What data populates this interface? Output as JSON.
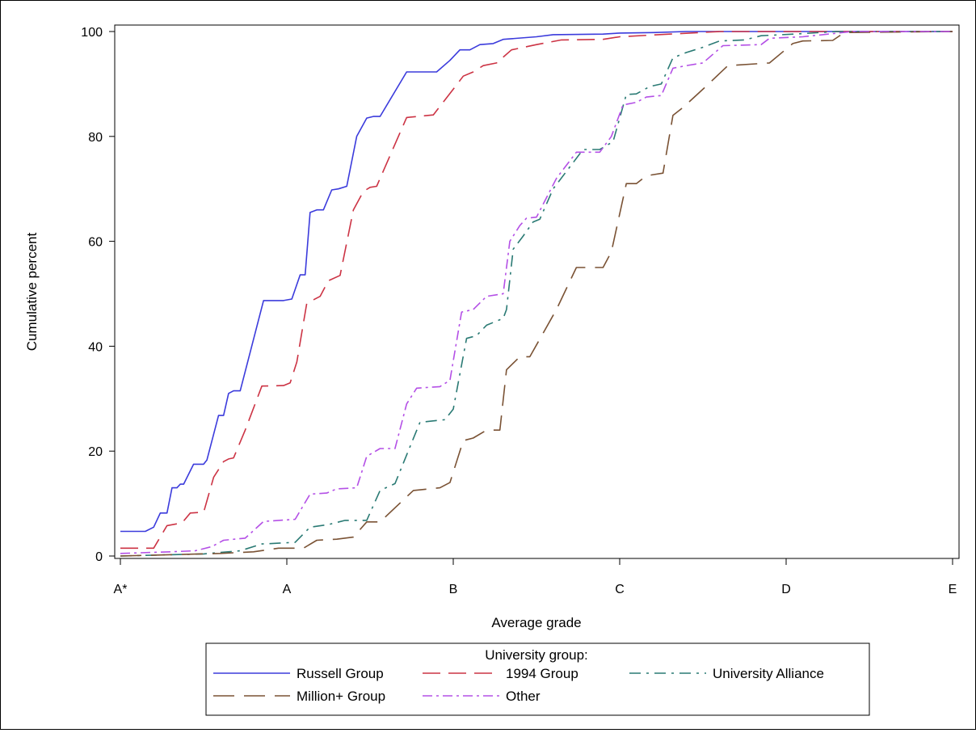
{
  "chart_data": {
    "type": "line",
    "xlabel": "Average grade",
    "ylabel": "Cumulative percent",
    "x_tick_labels": [
      "A*",
      "A",
      "B",
      "C",
      "D",
      "E"
    ],
    "y_ticks": [
      0,
      20,
      40,
      60,
      80,
      100
    ],
    "xlim": [
      0,
      5
    ],
    "ylim": [
      0,
      100
    ],
    "grid": false,
    "legend": {
      "title": "University group:",
      "placement": "bottom"
    },
    "series": [
      {
        "name": "Russell Group",
        "color": "#3b3bdc",
        "dash": "solid",
        "points": [
          [
            0,
            4.7
          ],
          [
            0.15,
            4.7
          ],
          [
            0.2,
            5.5
          ],
          [
            0.24,
            8.2
          ],
          [
            0.28,
            8.2
          ],
          [
            0.31,
            13
          ],
          [
            0.34,
            13
          ],
          [
            0.36,
            13.7
          ],
          [
            0.38,
            13.7
          ],
          [
            0.44,
            17.5
          ],
          [
            0.5,
            17.5
          ],
          [
            0.52,
            18.3
          ],
          [
            0.59,
            26.8
          ],
          [
            0.62,
            26.8
          ],
          [
            0.65,
            31
          ],
          [
            0.68,
            31.5
          ],
          [
            0.72,
            31.5
          ],
          [
            0.86,
            48.7
          ],
          [
            0.98,
            48.7
          ],
          [
            1.03,
            49
          ],
          [
            1.08,
            53.6
          ],
          [
            1.11,
            53.6
          ],
          [
            1.14,
            65.5
          ],
          [
            1.18,
            66
          ],
          [
            1.22,
            66
          ],
          [
            1.27,
            69.8
          ],
          [
            1.31,
            70
          ],
          [
            1.36,
            70.5
          ],
          [
            1.42,
            80
          ],
          [
            1.48,
            83.5
          ],
          [
            1.52,
            83.8
          ],
          [
            1.56,
            83.8
          ],
          [
            1.72,
            92.3
          ],
          [
            1.9,
            92.3
          ],
          [
            1.98,
            94.5
          ],
          [
            2.04,
            96.5
          ],
          [
            2.1,
            96.5
          ],
          [
            2.16,
            97.5
          ],
          [
            2.24,
            97.7
          ],
          [
            2.3,
            98.5
          ],
          [
            2.5,
            99
          ],
          [
            2.6,
            99.4
          ],
          [
            2.9,
            99.5
          ],
          [
            3.0,
            99.7
          ],
          [
            3.2,
            99.8
          ],
          [
            3.4,
            100
          ],
          [
            5,
            100
          ]
        ]
      },
      {
        "name": "1994 Group",
        "color": "#cc3344",
        "dash": "long",
        "points": [
          [
            0,
            1.5
          ],
          [
            0.2,
            1.5
          ],
          [
            0.28,
            5.8
          ],
          [
            0.37,
            6.3
          ],
          [
            0.42,
            8.2
          ],
          [
            0.47,
            8.3
          ],
          [
            0.5,
            8.3
          ],
          [
            0.56,
            15
          ],
          [
            0.62,
            18
          ],
          [
            0.65,
            18.5
          ],
          [
            0.68,
            18.7
          ],
          [
            0.75,
            24
          ],
          [
            0.85,
            32.4
          ],
          [
            0.98,
            32.5
          ],
          [
            1.02,
            33
          ],
          [
            1.06,
            37
          ],
          [
            1.12,
            48.2
          ],
          [
            1.2,
            49.5
          ],
          [
            1.25,
            52.5
          ],
          [
            1.32,
            53.5
          ],
          [
            1.4,
            66
          ],
          [
            1.46,
            69.5
          ],
          [
            1.5,
            70.3
          ],
          [
            1.54,
            70.5
          ],
          [
            1.72,
            83.6
          ],
          [
            1.88,
            84.1
          ],
          [
            2.0,
            89
          ],
          [
            2.06,
            91.5
          ],
          [
            2.12,
            92.3
          ],
          [
            2.18,
            93.5
          ],
          [
            2.26,
            94
          ],
          [
            2.35,
            96.5
          ],
          [
            2.5,
            97.5
          ],
          [
            2.65,
            98.4
          ],
          [
            2.9,
            98.5
          ],
          [
            3.0,
            99
          ],
          [
            3.3,
            99.5
          ],
          [
            3.6,
            100
          ],
          [
            5,
            100
          ]
        ]
      },
      {
        "name": "University Alliance",
        "color": "#2a7a74",
        "dash": "dashdot",
        "points": [
          [
            0,
            0
          ],
          [
            0.5,
            0.4
          ],
          [
            0.72,
            1
          ],
          [
            0.85,
            2.3
          ],
          [
            1.05,
            2.6
          ],
          [
            1.14,
            5.5
          ],
          [
            1.25,
            6
          ],
          [
            1.35,
            6.8
          ],
          [
            1.48,
            6.8
          ],
          [
            1.56,
            12.5
          ],
          [
            1.65,
            13.8
          ],
          [
            1.8,
            25.5
          ],
          [
            1.95,
            26
          ],
          [
            2.0,
            28
          ],
          [
            2.08,
            41.5
          ],
          [
            2.14,
            42
          ],
          [
            2.2,
            44
          ],
          [
            2.3,
            45.3
          ],
          [
            2.32,
            47
          ],
          [
            2.36,
            58.5
          ],
          [
            2.42,
            61
          ],
          [
            2.48,
            63.7
          ],
          [
            2.52,
            64.2
          ],
          [
            2.6,
            70
          ],
          [
            2.78,
            77.5
          ],
          [
            2.88,
            77.5
          ],
          [
            2.96,
            79
          ],
          [
            3.04,
            88
          ],
          [
            3.1,
            88.1
          ],
          [
            3.18,
            89.5
          ],
          [
            3.25,
            90
          ],
          [
            3.32,
            95
          ],
          [
            3.4,
            96
          ],
          [
            3.5,
            97
          ],
          [
            3.6,
            98.2
          ],
          [
            3.75,
            98.4
          ],
          [
            3.85,
            99.2
          ],
          [
            4.1,
            99.6
          ],
          [
            4.3,
            100
          ],
          [
            5,
            100
          ]
        ]
      },
      {
        "name": "Million+ Group",
        "color": "#7a5234",
        "dash": "longer",
        "points": [
          [
            0,
            0
          ],
          [
            0.6,
            0.5
          ],
          [
            0.8,
            0.8
          ],
          [
            0.95,
            1.5
          ],
          [
            1.1,
            1.5
          ],
          [
            1.18,
            3
          ],
          [
            1.3,
            3.2
          ],
          [
            1.4,
            3.6
          ],
          [
            1.48,
            6.5
          ],
          [
            1.56,
            6.5
          ],
          [
            1.76,
            12.5
          ],
          [
            1.92,
            13
          ],
          [
            1.98,
            14
          ],
          [
            2.06,
            22
          ],
          [
            2.12,
            22.5
          ],
          [
            2.2,
            24
          ],
          [
            2.28,
            24
          ],
          [
            2.32,
            35.5
          ],
          [
            2.4,
            38
          ],
          [
            2.46,
            38
          ],
          [
            2.62,
            47
          ],
          [
            2.74,
            55
          ],
          [
            2.9,
            55
          ],
          [
            2.95,
            58
          ],
          [
            3.04,
            71
          ],
          [
            3.1,
            71
          ],
          [
            3.16,
            72.5
          ],
          [
            3.26,
            73
          ],
          [
            3.32,
            84
          ],
          [
            3.38,
            85.5
          ],
          [
            3.5,
            89
          ],
          [
            3.65,
            93.5
          ],
          [
            3.9,
            94
          ],
          [
            4.04,
            97.7
          ],
          [
            4.1,
            98.2
          ],
          [
            4.28,
            98.3
          ],
          [
            4.35,
            99.8
          ],
          [
            5,
            100
          ]
        ]
      },
      {
        "name": "Other",
        "color": "#b450e6",
        "dash": "dashdot2",
        "points": [
          [
            0,
            0.5
          ],
          [
            0.3,
            0.8
          ],
          [
            0.45,
            1
          ],
          [
            0.55,
            1.8
          ],
          [
            0.62,
            3
          ],
          [
            0.75,
            3.4
          ],
          [
            0.86,
            6.6
          ],
          [
            1.05,
            7
          ],
          [
            1.14,
            11.8
          ],
          [
            1.24,
            12
          ],
          [
            1.3,
            12.8
          ],
          [
            1.42,
            13
          ],
          [
            1.48,
            19
          ],
          [
            1.56,
            20.5
          ],
          [
            1.65,
            20.5
          ],
          [
            1.72,
            29
          ],
          [
            1.78,
            32
          ],
          [
            1.92,
            32.3
          ],
          [
            1.98,
            33.5
          ],
          [
            2.05,
            46.5
          ],
          [
            2.12,
            47
          ],
          [
            2.2,
            49.5
          ],
          [
            2.3,
            50
          ],
          [
            2.34,
            60
          ],
          [
            2.4,
            63
          ],
          [
            2.44,
            64.4
          ],
          [
            2.5,
            64.6
          ],
          [
            2.62,
            72
          ],
          [
            2.74,
            77
          ],
          [
            2.88,
            77
          ],
          [
            2.95,
            80
          ],
          [
            3.02,
            86
          ],
          [
            3.1,
            86.5
          ],
          [
            3.16,
            87.5
          ],
          [
            3.25,
            87.8
          ],
          [
            3.32,
            93
          ],
          [
            3.4,
            93.5
          ],
          [
            3.5,
            94
          ],
          [
            3.62,
            97.3
          ],
          [
            3.85,
            97.5
          ],
          [
            3.9,
            98.7
          ],
          [
            4.1,
            99
          ],
          [
            4.4,
            100
          ],
          [
            5,
            100
          ]
        ]
      }
    ]
  }
}
